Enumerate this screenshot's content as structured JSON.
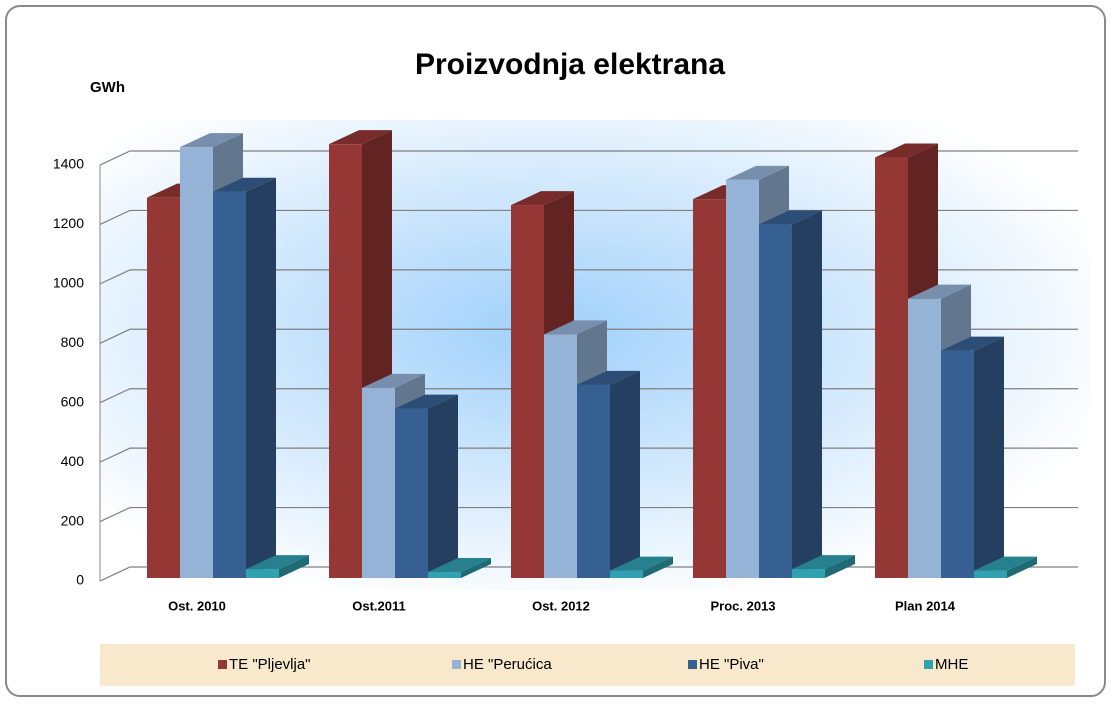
{
  "chart_data": {
    "type": "bar3d",
    "title": "Proizvodnja elektrana",
    "y_label": "GWh",
    "categories": [
      "Ost. 2010",
      "Ost.2011",
      "Ost. 2012",
      "Proc. 2013",
      "Plan 2014"
    ],
    "series": [
      {
        "name": "TE \"Pljevlja\"",
        "color": "#953735",
        "values": [
          1280,
          1460,
          1255,
          1275,
          1415
        ]
      },
      {
        "name": "HE \"Perućica",
        "color": "#95b3d7",
        "values": [
          1450,
          640,
          820,
          1340,
          940
        ]
      },
      {
        "name": "HE \"Piva\"",
        "color": "#376092",
        "values": [
          1300,
          570,
          650,
          1190,
          765
        ]
      },
      {
        "name": "MHE",
        "color": "#31a0b0",
        "values": [
          30,
          20,
          25,
          30,
          25
        ]
      }
    ],
    "ylim": [
      0,
      1400
    ],
    "yticks": [
      0,
      200,
      400,
      600,
      800,
      1000,
      1200,
      1400
    ],
    "grid": true,
    "legend": "bottom"
  }
}
